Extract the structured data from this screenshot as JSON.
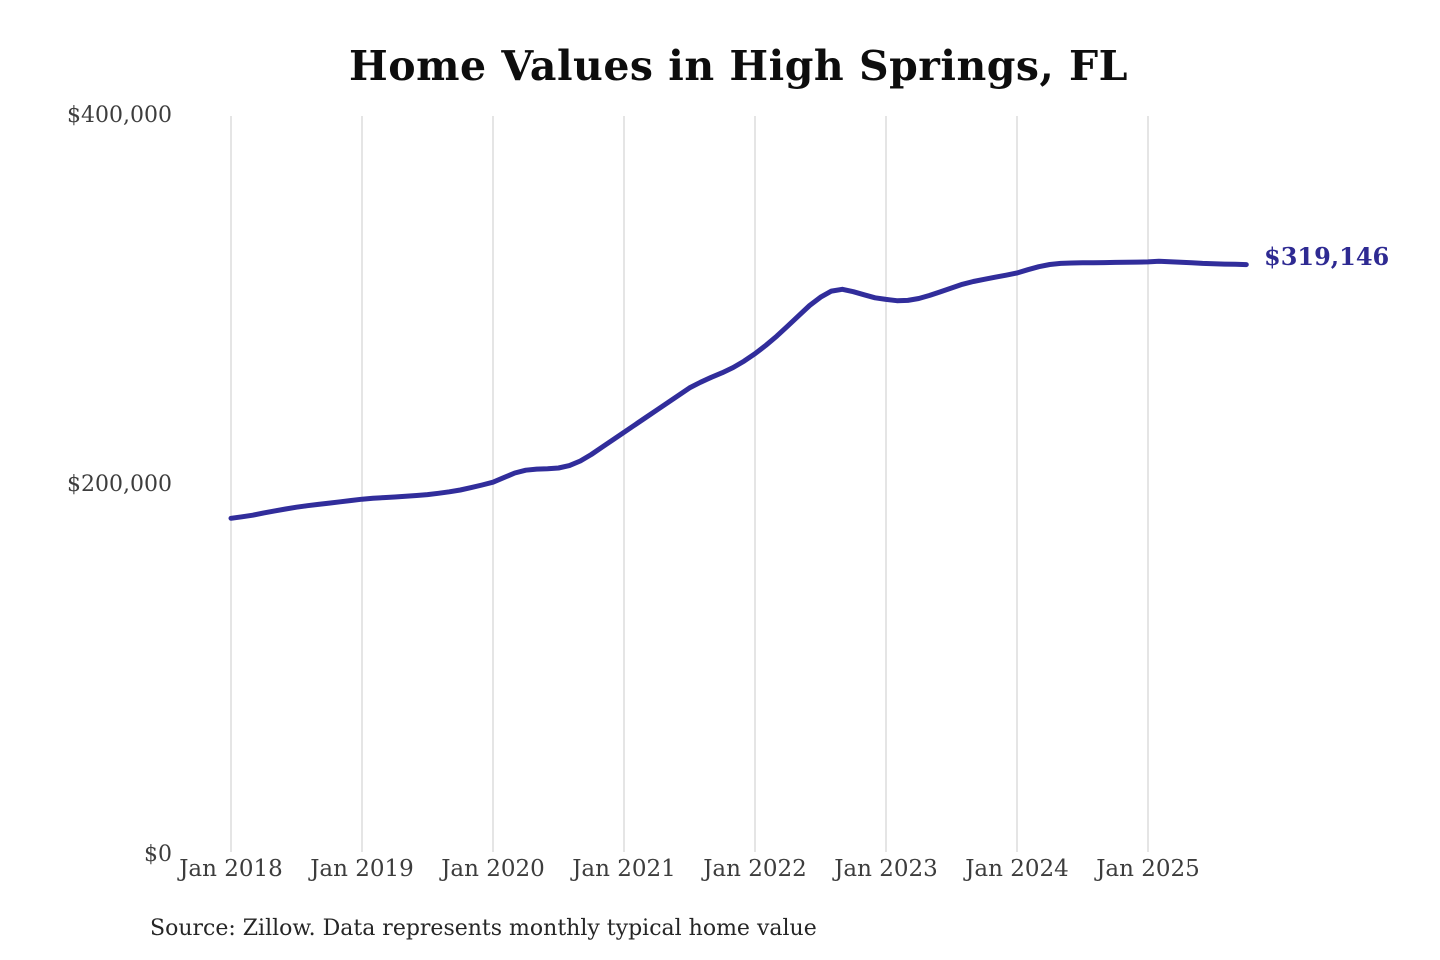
{
  "page": {
    "background_color": "#ffffff"
  },
  "chart_data": {
    "type": "line",
    "title": "Home Values in High Springs, FL",
    "source_note": "Source: Zillow. Data represents monthly typical home value",
    "end_label": "$319,146",
    "last_value": 319146,
    "line_color": "#312d9b",
    "end_label_color": "#2e2a92",
    "grid_color": "#cbcbcb",
    "axis_label_color": "#3d3d3d",
    "grid": "vertical-only",
    "legend": "none",
    "ylim": [
      0,
      400000
    ],
    "y_ticks": [
      {
        "label": "$400,000",
        "value": 400000
      },
      {
        "label": "$200,000",
        "value": 200000
      },
      {
        "label": "$0",
        "value": 0
      }
    ],
    "x_tick_labels": [
      "Jan 2018",
      "Jan 2019",
      "Jan 2020",
      "Jan 2021",
      "Jan 2022",
      "Jan 2023",
      "Jan 2024",
      "Jan 2025"
    ],
    "months": [
      "2018-01",
      "2018-02",
      "2018-03",
      "2018-04",
      "2018-05",
      "2018-06",
      "2018-07",
      "2018-08",
      "2018-09",
      "2018-10",
      "2018-11",
      "2018-12",
      "2019-01",
      "2019-02",
      "2019-03",
      "2019-04",
      "2019-05",
      "2019-06",
      "2019-07",
      "2019-08",
      "2019-09",
      "2019-10",
      "2019-11",
      "2019-12",
      "2020-01",
      "2020-02",
      "2020-03",
      "2020-04",
      "2020-05",
      "2020-06",
      "2020-07",
      "2020-08",
      "2020-09",
      "2020-10",
      "2020-11",
      "2020-12",
      "2021-01",
      "2021-02",
      "2021-03",
      "2021-04",
      "2021-05",
      "2021-06",
      "2021-07",
      "2021-08",
      "2021-09",
      "2021-10",
      "2021-11",
      "2021-12",
      "2022-01",
      "2022-02",
      "2022-03",
      "2022-04",
      "2022-05",
      "2022-06",
      "2022-07",
      "2022-08",
      "2022-09",
      "2022-10",
      "2022-11",
      "2022-12",
      "2023-01",
      "2023-02",
      "2023-03",
      "2023-04",
      "2023-05",
      "2023-06",
      "2023-07",
      "2023-08",
      "2023-09",
      "2023-10",
      "2023-11",
      "2023-12",
      "2024-01",
      "2024-02",
      "2024-03",
      "2024-04",
      "2024-05",
      "2024-06",
      "2024-07",
      "2024-08",
      "2024-09",
      "2024-10",
      "2024-11",
      "2024-12",
      "2025-01",
      "2025-02",
      "2025-03",
      "2025-04",
      "2025-05",
      "2025-06",
      "2025-07",
      "2025-08",
      "2025-09",
      "2025-10"
    ],
    "values": [
      182000,
      182800,
      183700,
      184900,
      186000,
      187000,
      188000,
      188800,
      189500,
      190200,
      190900,
      191600,
      192300,
      192800,
      193200,
      193500,
      193900,
      194300,
      194800,
      195500,
      196300,
      197300,
      198600,
      200000,
      201500,
      204000,
      206500,
      208000,
      208600,
      208800,
      209200,
      210500,
      213000,
      216500,
      220500,
      224500,
      228500,
      232500,
      236500,
      240500,
      244500,
      248500,
      252500,
      255500,
      258200,
      260700,
      263500,
      267000,
      271000,
      275500,
      280500,
      286000,
      291500,
      297000,
      301500,
      304800,
      305800,
      304500,
      302800,
      301200,
      300300,
      299600,
      299800,
      300800,
      302500,
      304500,
      306500,
      308500,
      310000,
      311200,
      312300,
      313400,
      314600,
      316400,
      318000,
      319200,
      319800,
      320000,
      320100,
      320100,
      320200,
      320300,
      320400,
      320500,
      320600,
      320900,
      320700,
      320400,
      320100,
      319800,
      319600,
      319400,
      319300,
      319146
    ]
  }
}
